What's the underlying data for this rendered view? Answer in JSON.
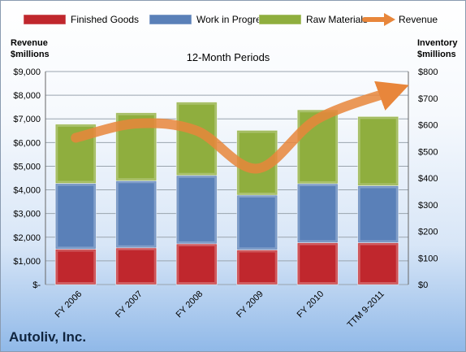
{
  "company": "Autoliv, Inc.",
  "chart_data": {
    "type": "bar",
    "stacked": true,
    "title": "12-Month Periods",
    "ylabel_left": [
      "Revenue",
      "$millions"
    ],
    "ylabel_right": [
      "Inventory",
      "$millions"
    ],
    "categories": [
      "FY 2006",
      "FY 2007",
      "FY 2008",
      "FY 2009",
      "FY 2010",
      "TTM 9-2011"
    ],
    "series": [
      {
        "name": "Finished Goods",
        "axis": "right",
        "color": "#c0272d",
        "values": [
          133,
          138,
          153,
          130,
          157,
          157
        ]
      },
      {
        "name": "Work in Progress",
        "axis": "right",
        "color": "#5a80b8",
        "values": [
          247,
          252,
          257,
          206,
          222,
          214
        ]
      },
      {
        "name": "Raw Materials",
        "axis": "right",
        "color": "#8fae3e",
        "values": [
          222,
          255,
          275,
          243,
          277,
          260
        ]
      }
    ],
    "line": {
      "name": "Revenue",
      "axis": "left",
      "color": "#e8863b",
      "values": [
        6200,
        6800,
        6500,
        4900,
        7000,
        8200
      ]
    },
    "ylim_left": [
      0,
      9000
    ],
    "yticks_left": [
      "$-",
      "$1,000",
      "$2,000",
      "$3,000",
      "$4,000",
      "$5,000",
      "$6,000",
      "$7,000",
      "$8,000",
      "$9,000"
    ],
    "ylim_right": [
      0,
      800
    ],
    "yticks_right": [
      "$0",
      "$100",
      "$200",
      "$300",
      "$400",
      "$500",
      "$600",
      "$700",
      "$800"
    ],
    "grid": true,
    "legend": "top"
  }
}
